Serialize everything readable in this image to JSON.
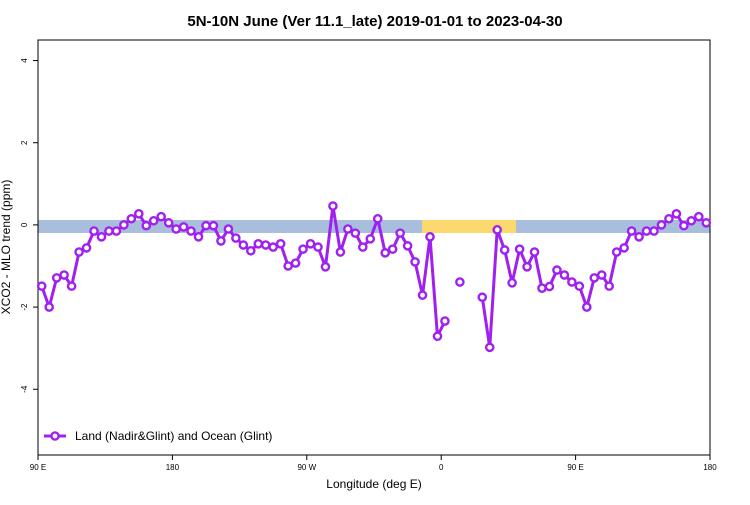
{
  "chart_data": {
    "type": "line",
    "title": "5N-10N June (Ver 11.1_late)   2019-01-01 to 2023-04-30",
    "x_label": "Longitude (deg E)",
    "y_label": "XCO2 - MLO trend (ppm)",
    "x": [
      92.5,
      97.5,
      102.5,
      107.5,
      112.5,
      117.5,
      122.5,
      127.5,
      132.5,
      137.5,
      142.5,
      147.5,
      152.5,
      157.5,
      162.5,
      167.5,
      172.5,
      177.5,
      182.5,
      187.5,
      192.5,
      197.5,
      202.5,
      207.5,
      212.5,
      217.5,
      222.5,
      227.5,
      232.5,
      237.5,
      242.5,
      247.5,
      252.5,
      257.5,
      262.5,
      267.5,
      272.5,
      277.5,
      282.5,
      287.5,
      292.5,
      297.5,
      302.5,
      307.5,
      312.5,
      317.5,
      322.5,
      327.5,
      332.5,
      337.5,
      342.5,
      347.5,
      352.5,
      357.5,
      362.5,
      367.5,
      372.5,
      377.5,
      382.5,
      387.5,
      392.5,
      397.5,
      402.5,
      407.5,
      412.5,
      417.5,
      422.5,
      427.5,
      432.5,
      437.5,
      442.5,
      447.5,
      452.5,
      457.5,
      462.5,
      467.5,
      472.5,
      477.5,
      482.5,
      487.5,
      492.5,
      497.5,
      502.5,
      507.5,
      512.5,
      517.5,
      522.5,
      527.5,
      532.5,
      537.5
    ],
    "series": [
      {
        "name": "Land (Nadir&Glint) and Ocean (Glint)",
        "color": "#a020f0",
        "values": [
          -1.49,
          -2.0,
          -1.29,
          -1.22,
          -1.49,
          -0.66,
          -0.56,
          -0.15,
          -0.29,
          -0.15,
          -0.15,
          0,
          0.15,
          0.27,
          -0.02,
          0.1,
          0.2,
          0.05,
          -0.1,
          -0.05,
          -0.15,
          -0.29,
          -0.02,
          -0.02,
          -0.39,
          -0.1,
          -0.32,
          -0.49,
          -0.63,
          -0.46,
          -0.49,
          -0.54,
          -0.46,
          -1.0,
          -0.93,
          -0.59,
          -0.46,
          -0.54,
          -1.02,
          0.46,
          -0.66,
          -0.1,
          -0.2,
          -0.54,
          -0.34,
          0.15,
          -0.68,
          -0.59,
          -0.2,
          -0.51,
          -0.9,
          -1.71,
          -0.29,
          -2.71,
          -2.34,
          null,
          -1.39,
          null,
          null,
          -1.76,
          -2.98,
          -0.12,
          -0.61,
          -1.41,
          -0.59,
          -1.02,
          -0.66,
          -1.54,
          -1.5,
          -1.1,
          -1.22,
          -1.39,
          -1.49,
          -2.0,
          -1.29,
          -1.22,
          -1.49,
          -0.66,
          -0.56,
          -0.15,
          -0.29,
          -0.15,
          -0.15,
          0,
          0.15,
          0.27,
          -0.02,
          0.1,
          0.2,
          0.05
        ]
      }
    ],
    "xlim": [
      90,
      540
    ],
    "xticks": [
      {
        "value": 90,
        "label": "90 E"
      },
      180,
      {
        "value": 270,
        "label": "90 W"
      },
      {
        "value": 360,
        "label": "0"
      },
      {
        "value": 450,
        "label": "90 E"
      },
      {
        "value": 540,
        "label": "180"
      }
    ],
    "ylim": [
      -5.6,
      4.5
    ],
    "yticks": [
      -4,
      -2,
      0,
      2,
      4
    ],
    "legend": "bottom-left"
  }
}
